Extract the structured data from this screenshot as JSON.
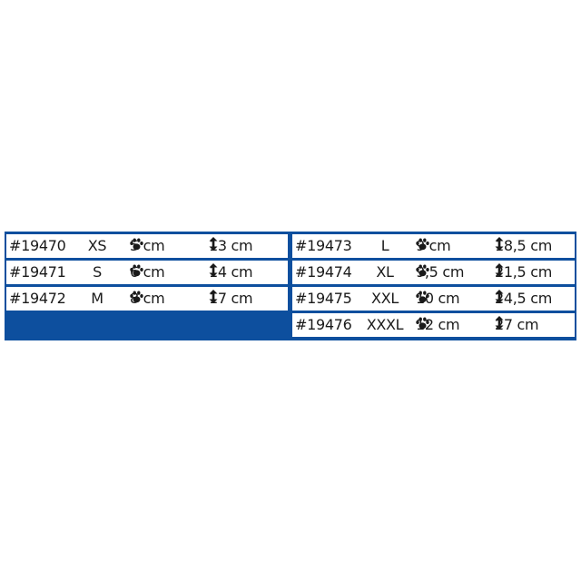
{
  "colors": {
    "accent": "#0d4f9e"
  },
  "icons": {
    "width": "paw-icon",
    "length": "vertical-arrow-icon"
  },
  "left_rows": [
    {
      "code": "#19470",
      "size": "XS",
      "paw": "5 cm",
      "height": "13 cm"
    },
    {
      "code": "#19471",
      "size": "S",
      "paw": "6 cm",
      "height": "14 cm"
    },
    {
      "code": "#19472",
      "size": "M",
      "paw": "8 cm",
      "height": "17 cm"
    }
  ],
  "right_rows": [
    {
      "code": "#19473",
      "size": "L",
      "paw": "9 cm",
      "height": "18,5 cm"
    },
    {
      "code": "#19474",
      "size": "XL",
      "paw": "9,5 cm",
      "height": "21,5 cm"
    },
    {
      "code": "#19475",
      "size": "XXL",
      "paw": "10 cm",
      "height": "24,5 cm"
    },
    {
      "code": "#19476",
      "size": "XXXL",
      "paw": "12 cm",
      "height": "27 cm"
    }
  ]
}
